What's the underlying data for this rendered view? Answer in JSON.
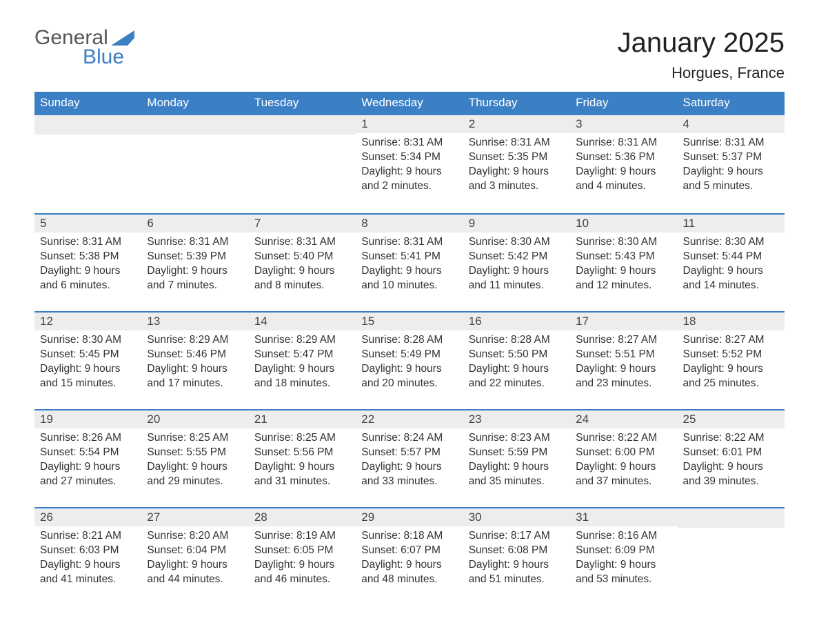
{
  "logo": {
    "text_general": "General",
    "text_blue": "Blue",
    "flag_color": "#3b7fc4"
  },
  "title": "January 2025",
  "location": "Horgues, France",
  "colors": {
    "header_bg": "#3b7fc4",
    "header_text": "#ffffff",
    "daynum_bg": "#ededed",
    "row_divider": "#3b7fc4",
    "body_text": "#333333",
    "page_bg": "#ffffff"
  },
  "typography": {
    "title_fontsize": 40,
    "location_fontsize": 22,
    "dayhead_fontsize": 17,
    "body_fontsize": 15.5,
    "font_family": "Arial, Helvetica, sans-serif"
  },
  "layout": {
    "columns": 7,
    "rows": 5,
    "leading_blanks": 3,
    "trailing_blanks": 1
  },
  "weekdays": [
    "Sunday",
    "Monday",
    "Tuesday",
    "Wednesday",
    "Thursday",
    "Friday",
    "Saturday"
  ],
  "labels": {
    "sunrise": "Sunrise: ",
    "sunset": "Sunset: ",
    "daylight": "Daylight: "
  },
  "days": [
    {
      "n": 1,
      "sunrise": "8:31 AM",
      "sunset": "5:34 PM",
      "daylight": "9 hours and 2 minutes."
    },
    {
      "n": 2,
      "sunrise": "8:31 AM",
      "sunset": "5:35 PM",
      "daylight": "9 hours and 3 minutes."
    },
    {
      "n": 3,
      "sunrise": "8:31 AM",
      "sunset": "5:36 PM",
      "daylight": "9 hours and 4 minutes."
    },
    {
      "n": 4,
      "sunrise": "8:31 AM",
      "sunset": "5:37 PM",
      "daylight": "9 hours and 5 minutes."
    },
    {
      "n": 5,
      "sunrise": "8:31 AM",
      "sunset": "5:38 PM",
      "daylight": "9 hours and 6 minutes."
    },
    {
      "n": 6,
      "sunrise": "8:31 AM",
      "sunset": "5:39 PM",
      "daylight": "9 hours and 7 minutes."
    },
    {
      "n": 7,
      "sunrise": "8:31 AM",
      "sunset": "5:40 PM",
      "daylight": "9 hours and 8 minutes."
    },
    {
      "n": 8,
      "sunrise": "8:31 AM",
      "sunset": "5:41 PM",
      "daylight": "9 hours and 10 minutes."
    },
    {
      "n": 9,
      "sunrise": "8:30 AM",
      "sunset": "5:42 PM",
      "daylight": "9 hours and 11 minutes."
    },
    {
      "n": 10,
      "sunrise": "8:30 AM",
      "sunset": "5:43 PM",
      "daylight": "9 hours and 12 minutes."
    },
    {
      "n": 11,
      "sunrise": "8:30 AM",
      "sunset": "5:44 PM",
      "daylight": "9 hours and 14 minutes."
    },
    {
      "n": 12,
      "sunrise": "8:30 AM",
      "sunset": "5:45 PM",
      "daylight": "9 hours and 15 minutes."
    },
    {
      "n": 13,
      "sunrise": "8:29 AM",
      "sunset": "5:46 PM",
      "daylight": "9 hours and 17 minutes."
    },
    {
      "n": 14,
      "sunrise": "8:29 AM",
      "sunset": "5:47 PM",
      "daylight": "9 hours and 18 minutes."
    },
    {
      "n": 15,
      "sunrise": "8:28 AM",
      "sunset": "5:49 PM",
      "daylight": "9 hours and 20 minutes."
    },
    {
      "n": 16,
      "sunrise": "8:28 AM",
      "sunset": "5:50 PM",
      "daylight": "9 hours and 22 minutes."
    },
    {
      "n": 17,
      "sunrise": "8:27 AM",
      "sunset": "5:51 PM",
      "daylight": "9 hours and 23 minutes."
    },
    {
      "n": 18,
      "sunrise": "8:27 AM",
      "sunset": "5:52 PM",
      "daylight": "9 hours and 25 minutes."
    },
    {
      "n": 19,
      "sunrise": "8:26 AM",
      "sunset": "5:54 PM",
      "daylight": "9 hours and 27 minutes."
    },
    {
      "n": 20,
      "sunrise": "8:25 AM",
      "sunset": "5:55 PM",
      "daylight": "9 hours and 29 minutes."
    },
    {
      "n": 21,
      "sunrise": "8:25 AM",
      "sunset": "5:56 PM",
      "daylight": "9 hours and 31 minutes."
    },
    {
      "n": 22,
      "sunrise": "8:24 AM",
      "sunset": "5:57 PM",
      "daylight": "9 hours and 33 minutes."
    },
    {
      "n": 23,
      "sunrise": "8:23 AM",
      "sunset": "5:59 PM",
      "daylight": "9 hours and 35 minutes."
    },
    {
      "n": 24,
      "sunrise": "8:22 AM",
      "sunset": "6:00 PM",
      "daylight": "9 hours and 37 minutes."
    },
    {
      "n": 25,
      "sunrise": "8:22 AM",
      "sunset": "6:01 PM",
      "daylight": "9 hours and 39 minutes."
    },
    {
      "n": 26,
      "sunrise": "8:21 AM",
      "sunset": "6:03 PM",
      "daylight": "9 hours and 41 minutes."
    },
    {
      "n": 27,
      "sunrise": "8:20 AM",
      "sunset": "6:04 PM",
      "daylight": "9 hours and 44 minutes."
    },
    {
      "n": 28,
      "sunrise": "8:19 AM",
      "sunset": "6:05 PM",
      "daylight": "9 hours and 46 minutes."
    },
    {
      "n": 29,
      "sunrise": "8:18 AM",
      "sunset": "6:07 PM",
      "daylight": "9 hours and 48 minutes."
    },
    {
      "n": 30,
      "sunrise": "8:17 AM",
      "sunset": "6:08 PM",
      "daylight": "9 hours and 51 minutes."
    },
    {
      "n": 31,
      "sunrise": "8:16 AM",
      "sunset": "6:09 PM",
      "daylight": "9 hours and 53 minutes."
    }
  ]
}
